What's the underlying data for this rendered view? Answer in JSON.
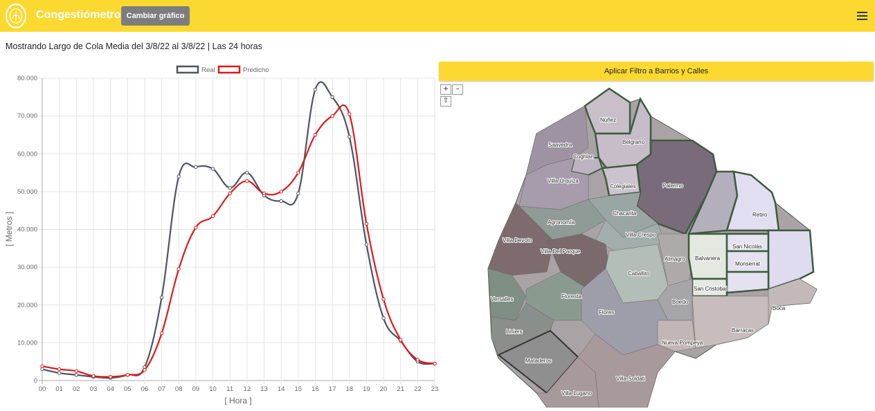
{
  "navbar": {
    "brand": "Congestiómetro",
    "change_chart_label": "Cambiar gráfico",
    "bg_color": "#fcd930"
  },
  "subtitle": "Mostrando Largo de Cola Media del 3/8/22 al 3/8/22 | Las 24 horas",
  "filter_button_label": "Aplicar Filtro a Barrios y Calles",
  "map_controls": {
    "zoom_in": "+",
    "zoom_out": "–",
    "home": "⇧"
  },
  "chart_data": {
    "type": "line",
    "xlabel": "[ Hora ]",
    "ylabel": "[ Metros ]",
    "ylim": [
      0,
      80000
    ],
    "grid": true,
    "legend_position": "top",
    "x": [
      "00",
      "01",
      "02",
      "03",
      "04",
      "05",
      "06",
      "07",
      "08",
      "09",
      "10",
      "11",
      "12",
      "13",
      "14",
      "15",
      "16",
      "17",
      "18",
      "19",
      "20",
      "21",
      "22",
      "23"
    ],
    "y_ticks": [
      "0",
      "10.000",
      "20.000",
      "30.000",
      "40.000",
      "50.000",
      "60.000",
      "70.000",
      "80.000"
    ],
    "series": [
      {
        "name": "Real",
        "color": "#4e5262",
        "values": [
          3000,
          2000,
          1500,
          1000,
          700,
          1500,
          3500,
          22000,
          54000,
          56500,
          56000,
          51000,
          55000,
          49000,
          47500,
          49500,
          77000,
          75000,
          64500,
          36000,
          16500,
          10500,
          5000,
          4500
        ]
      },
      {
        "name": "Predicho",
        "color": "#e01818",
        "values": [
          3800,
          3000,
          2500,
          1200,
          1000,
          1500,
          2800,
          12500,
          29500,
          40500,
          43500,
          49500,
          52800,
          49500,
          50000,
          55000,
          65000,
          70000,
          70500,
          41500,
          21500,
          10800,
          5500,
          4500
        ]
      }
    ]
  },
  "map": {
    "neighborhoods": [
      "Núñez",
      "Saavedra",
      "Belgrano",
      "Coghlan",
      "Villa Urquiza",
      "Colegiales",
      "Palermo",
      "Retiro",
      "Agronomía",
      "Chacarita",
      "Villa Crespo",
      "San Nicolás",
      "Villa Devoto",
      "Villa Del Parque",
      "Almagro",
      "Balvanera",
      "Monserrat",
      "Caballito",
      "San Cristobal",
      "Versalles",
      "Floresta",
      "Boedo",
      "Flores",
      "Boca",
      "Liniers",
      "Barracas",
      "Nueva Pompeya",
      "Mataderos",
      "Villa Soldati",
      "Villa Lugano"
    ]
  }
}
